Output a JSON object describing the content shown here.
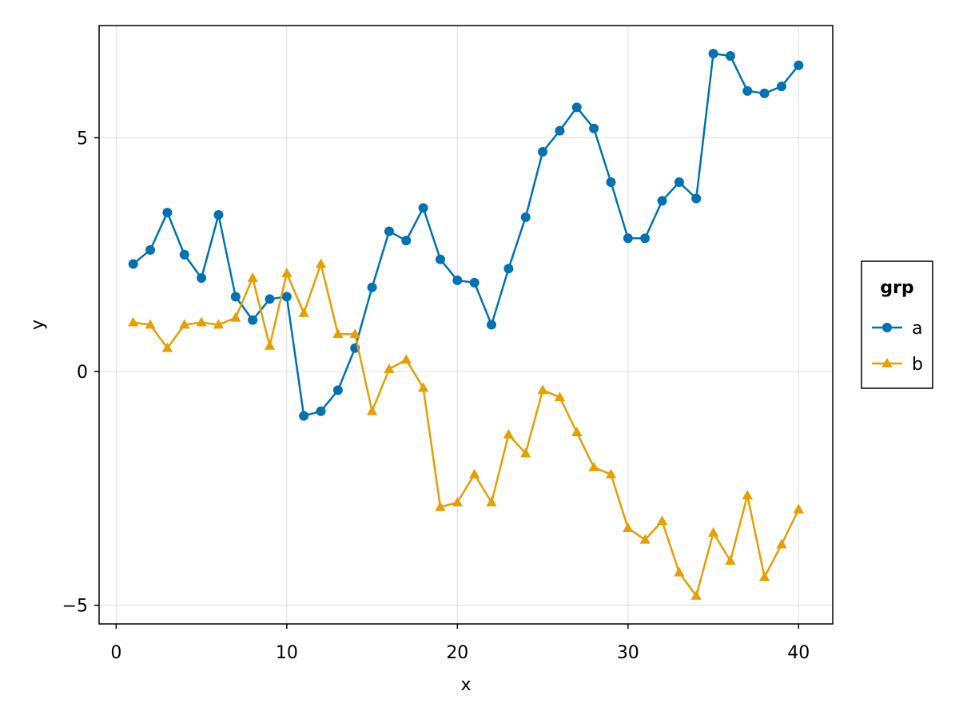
{
  "chart_data": {
    "type": "line",
    "xlabel": "x",
    "ylabel": "y",
    "xlim": [
      -1,
      42
    ],
    "ylim": [
      -5.4,
      7.4
    ],
    "xticks": [
      0,
      10,
      20,
      30,
      40
    ],
    "yticks": [
      -5,
      0,
      5
    ],
    "ytick_labels": [
      "−5",
      "0",
      "5"
    ],
    "grid": true,
    "legend": {
      "title": "grp",
      "placement": "right"
    },
    "x": [
      1,
      2,
      3,
      4,
      5,
      6,
      7,
      8,
      9,
      10,
      11,
      12,
      13,
      14,
      15,
      16,
      17,
      18,
      19,
      20,
      21,
      22,
      23,
      24,
      25,
      26,
      27,
      28,
      29,
      30,
      31,
      32,
      33,
      34,
      35,
      36,
      37,
      38,
      39,
      40
    ],
    "series": [
      {
        "name": "a",
        "color": "#0072b2",
        "marker": "circle",
        "values": [
          2.3,
          2.6,
          3.4,
          2.5,
          2.0,
          3.35,
          1.6,
          1.1,
          1.55,
          1.6,
          -0.95,
          -0.85,
          -0.4,
          0.5,
          1.8,
          3.0,
          2.8,
          3.5,
          2.4,
          1.95,
          1.9,
          1.0,
          2.2,
          3.3,
          4.7,
          5.15,
          5.65,
          5.2,
          4.05,
          2.85,
          2.85,
          3.65,
          4.05,
          3.7,
          6.8,
          6.75,
          6.0,
          5.95,
          6.1,
          6.55
        ]
      },
      {
        "name": "b",
        "color": "#e69f00",
        "marker": "triangle",
        "values": [
          1.05,
          1.0,
          0.5,
          1.0,
          1.05,
          1.0,
          1.15,
          2.0,
          0.55,
          2.1,
          1.25,
          2.3,
          0.8,
          0.8,
          -0.85,
          0.05,
          0.25,
          -0.35,
          -2.9,
          -2.8,
          -2.2,
          -2.8,
          -1.35,
          -1.75,
          -0.4,
          -0.55,
          -1.3,
          -2.05,
          -2.2,
          -3.35,
          -3.6,
          -3.2,
          -4.3,
          -4.8,
          -3.45,
          -4.05,
          -2.65,
          -4.4,
          -3.7,
          -2.95
        ]
      }
    ]
  }
}
